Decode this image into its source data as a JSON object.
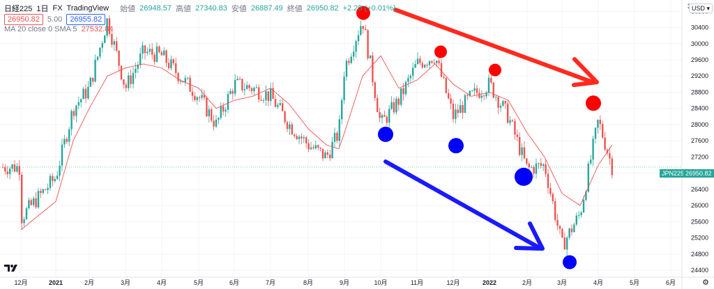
{
  "header": {
    "symbol": "日経225",
    "interval": "1日",
    "market": "FX",
    "brand": "TradingView",
    "open_label": "始値",
    "open": "26948.57",
    "high_label": "高値",
    "high": "27340.83",
    "low_label": "安値",
    "low": "26887.49",
    "close_label": "終値",
    "close": "26950.82",
    "change": "+2.25 (+0.01%)",
    "bid": "26950.82",
    "spread": "5.00",
    "ask": "26955.82",
    "ma_label": "MA 20 close 0 SMA 5",
    "ma_value": "27532.84"
  },
  "price_axis": {
    "currency": "USD",
    "top_tick_partial": "3",
    "last_tag_symbol": "JPN225",
    "last_tag_price": "26950.82",
    "gear_icon": "gear-icon"
  },
  "colors": {
    "up": "#26a69a",
    "down": "#ef5350",
    "ma": "#ef5350",
    "peak_marker": "#ff0000",
    "trough_marker": "#0000ff",
    "grid": "#f0f3fa"
  },
  "chart_data": {
    "type": "candlestick",
    "x_ticks": [
      "12月",
      "2021",
      "2月",
      "3月",
      "4月",
      "5月",
      "6月",
      "7月",
      "8月",
      "9月",
      "10月",
      "11月",
      "12月",
      "2022",
      "2月",
      "3月",
      "4月",
      "5月",
      "6月"
    ],
    "y_ticks": [
      24400,
      24800,
      25200,
      25600,
      26000,
      26400,
      26800,
      27200,
      27600,
      28000,
      28400,
      28800,
      29200,
      29600,
      30000,
      30400,
      30800
    ],
    "ylim": [
      24230,
      31080
    ],
    "series": [
      {
        "name": "日経225",
        "kind": "ohlc-close-path",
        "points": [
          [
            "12月",
            25700
          ],
          [
            "2021",
            26700
          ],
          [
            "1月中",
            28400
          ],
          [
            "2月",
            28900
          ],
          [
            "2月中",
            30600
          ],
          [
            "3月",
            28900
          ],
          [
            "3月中",
            29800
          ],
          [
            "4月",
            29700
          ],
          [
            "4月中",
            29200
          ],
          [
            "5月",
            28700
          ],
          [
            "5月中",
            28000
          ],
          [
            "6月",
            29000
          ],
          [
            "6月中",
            28900
          ],
          [
            "7月",
            28700
          ],
          [
            "7月中",
            28000
          ],
          [
            "8月",
            27500
          ],
          [
            "8月中",
            27200
          ],
          [
            "8月末",
            27800
          ],
          [
            "9月",
            29400
          ],
          [
            "9月中",
            30600
          ],
          [
            "10月",
            28000
          ],
          [
            "10月中",
            28600
          ],
          [
            "11月",
            29500
          ],
          [
            "11月中",
            29700
          ],
          [
            "12月",
            28200
          ],
          [
            "12月中",
            28700
          ],
          [
            "2022",
            29000
          ],
          [
            "1月中",
            28200
          ],
          [
            "2月",
            26900
          ],
          [
            "2月中",
            27000
          ],
          [
            "3月",
            25000
          ],
          [
            "3月中",
            25800
          ],
          [
            "4月",
            28100
          ],
          [
            "4月中",
            26950
          ]
        ]
      },
      {
        "name": "MA 20 close 0 SMA 5",
        "kind": "line",
        "points": [
          [
            "12月",
            25400
          ],
          [
            "2021",
            26100
          ],
          [
            "1月中",
            27600
          ],
          [
            "2月",
            28400
          ],
          [
            "2月中",
            29200
          ],
          [
            "3月",
            29400
          ],
          [
            "3月中",
            29500
          ],
          [
            "4月",
            29400
          ],
          [
            "4月中",
            29100
          ],
          [
            "5月",
            28900
          ],
          [
            "5月中",
            28400
          ],
          [
            "6月",
            28600
          ],
          [
            "6月中",
            28700
          ],
          [
            "7月",
            28900
          ],
          [
            "7月中",
            28500
          ],
          [
            "8月",
            27900
          ],
          [
            "8月中",
            27500
          ],
          [
            "8月末",
            27400
          ],
          [
            "9月",
            27800
          ],
          [
            "9月中",
            29200
          ],
          [
            "10月",
            29700
          ],
          [
            "10月中",
            28900
          ],
          [
            "11月",
            29100
          ],
          [
            "11月中",
            29500
          ],
          [
            "12月",
            29000
          ],
          [
            "12月中",
            28700
          ],
          [
            "2022",
            28800
          ],
          [
            "1月中",
            28600
          ],
          [
            "2月",
            27800
          ],
          [
            "2月中",
            27200
          ],
          [
            "3月",
            26300
          ],
          [
            "3月中",
            26000
          ],
          [
            "4月",
            27000
          ],
          [
            "4月中",
            27500
          ]
        ]
      }
    ],
    "annotations": {
      "peaks": [
        {
          "x": "9月中",
          "y": 30760
        },
        {
          "x": "11月中",
          "y": 29800
        },
        {
          "x": "1月",
          "y": 29350
        },
        {
          "x": "4月",
          "y": 28530
        }
      ],
      "troughs": [
        {
          "x": "10月",
          "y": 27760
        },
        {
          "x": "12月",
          "y": 27480
        },
        {
          "x": "2月",
          "y": 26710
        },
        {
          "x": "3月",
          "y": 24600
        }
      ],
      "arrows": [
        {
          "color": "red",
          "from": {
            "x": "9月中",
            "y": 31000
          },
          "to": {
            "x": "4月",
            "y": 29250
          }
        },
        {
          "color": "blue",
          "from": {
            "x": "10月",
            "y": 27300
          },
          "to": {
            "x": "3月",
            "y": 25050
          }
        }
      ]
    }
  }
}
